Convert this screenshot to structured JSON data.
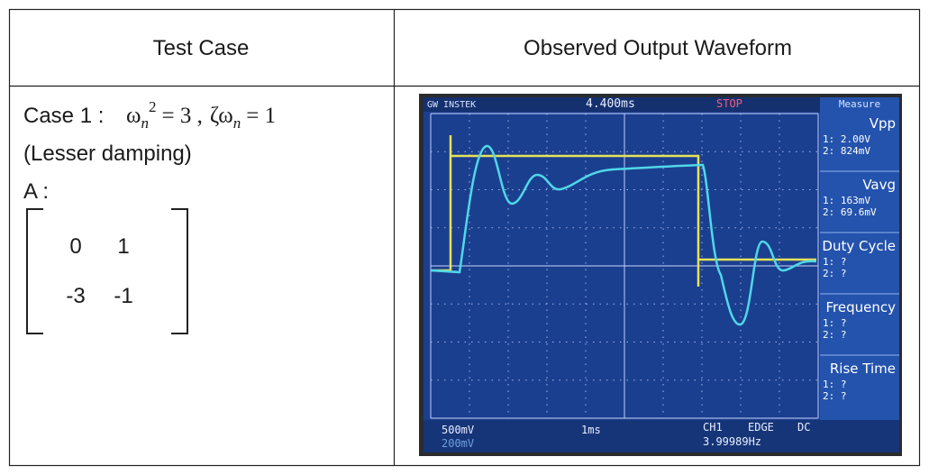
{
  "table": {
    "headers": [
      "Test Case",
      "Observed Output Waveform"
    ],
    "rows": [
      {
        "case_label": "Case 1 :",
        "equation": [
          "ω",
          "n",
          "2",
          "= 3 ,",
          "ζω",
          "n",
          "= 1"
        ],
        "note": "(Lesser damping)",
        "matrix_label": "A :",
        "matrix": [
          [
            0,
            1
          ],
          [
            -3,
            -1
          ]
        ],
        "scope": {
          "brand": "GW INSTEK",
          "timebase_offset": "4.400ms",
          "status": "STOP",
          "menu": "Measure",
          "measures": [
            {
              "name": "Vpp",
              "lines": [
                "1: 2.00V",
                "2: 824mV"
              ]
            },
            {
              "name": "Vavg",
              "lines": [
                "1: 163mV",
                "2: 69.6mV"
              ]
            },
            {
              "name": "Duty Cycle",
              "lines": [
                "1:  ?",
                "2:  ?"
              ]
            },
            {
              "name": "Frequency",
              "lines": [
                "1:  ?",
                "2:  ?"
              ]
            },
            {
              "name": "Rise Time",
              "lines": [
                "1:  ?",
                "2:  ?"
              ]
            }
          ],
          "ch1_scale": "500mV",
          "ch2_scale": "200mV",
          "time_scale": "1ms",
          "trigger": [
            "CH1",
            "EDGE",
            "DC"
          ],
          "frequency": "3.99989Hz"
        }
      }
    ]
  }
}
